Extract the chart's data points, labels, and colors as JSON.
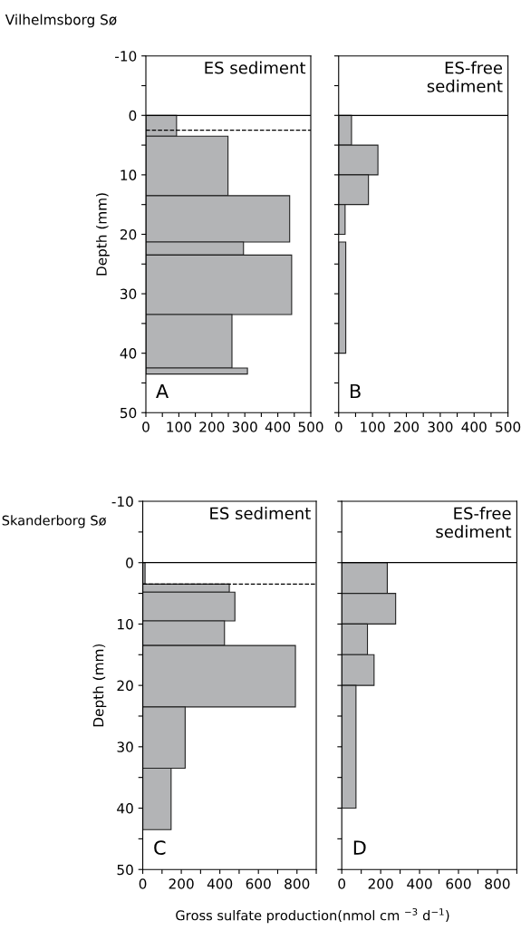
{
  "chart_data": [
    {
      "type": "histogram",
      "orientation": "horizontal",
      "title": "Vilhelmsborg Sø",
      "ylabel": "Depth (mm)",
      "annotations": [
        "ES sediment",
        "A"
      ],
      "color": "#b3b4b6",
      "bins": [
        0,
        3.5,
        13.5,
        21.3,
        23.5,
        33.5,
        42.5,
        43.5
      ],
      "values": [
        93,
        249,
        436,
        296,
        442,
        261,
        308
      ],
      "xlim": [
        0,
        500
      ],
      "xticks": [
        0,
        {
          "value": 50,
          "label": null
        },
        100,
        {
          "value": 150,
          "label": null
        },
        200,
        {
          "value": 250,
          "label": null
        },
        300,
        {
          "value": 350,
          "label": null
        },
        400,
        {
          "value": 450,
          "label": null
        },
        500
      ],
      "ylim": [
        50,
        -10
      ],
      "yticks": [
        -10,
        {
          "value": -5,
          "label": null
        },
        0,
        {
          "value": 5,
          "label": null
        },
        10,
        {
          "value": 15,
          "label": null
        },
        20,
        {
          "value": 25,
          "label": null
        },
        30,
        {
          "value": 35,
          "label": null
        },
        40,
        {
          "value": 45,
          "label": null
        },
        50
      ],
      "ref_lines": [
        {
          "axis": "y",
          "value": 0,
          "line_style": "solid",
          "color": "#000000"
        },
        {
          "axis": "y",
          "value": 2.5,
          "line_style": "dashed",
          "color": "#000000"
        }
      ],
      "grid": false
    },
    {
      "type": "histogram",
      "orientation": "horizontal",
      "annotations": [
        "ES-free\nsediment",
        "B"
      ],
      "color": "#b3b4b6",
      "bins": [
        0,
        5,
        10,
        15,
        20,
        21.3,
        40
      ],
      "values": [
        38,
        116,
        88,
        19,
        0,
        21
      ],
      "xlim": [
        0,
        500
      ],
      "xticks": [
        0,
        {
          "value": 50,
          "label": null
        },
        100,
        {
          "value": 150,
          "label": null
        },
        200,
        {
          "value": 250,
          "label": null
        },
        300,
        {
          "value": 350,
          "label": null
        },
        400,
        {
          "value": 450,
          "label": null
        },
        500
      ],
      "ylim": [
        50,
        -10
      ],
      "yticks": [
        -10,
        {
          "value": -5,
          "label": null
        },
        0,
        {
          "value": 5,
          "label": null
        },
        10,
        {
          "value": 15,
          "label": null
        },
        20,
        {
          "value": 25,
          "label": null
        },
        30,
        {
          "value": 35,
          "label": null
        },
        40,
        {
          "value": 45,
          "label": null
        },
        50
      ],
      "tick_labels": "x",
      "ref_lines": [
        {
          "axis": "y",
          "value": 0,
          "line_style": "solid",
          "color": "#000000"
        }
      ],
      "grid": false
    },
    {
      "type": "histogram",
      "orientation": "horizontal",
      "title": "Skanderborg Sø",
      "ylabel": "Depth (mm)",
      "xlabel": "Gross sulfate production(nmol cm $^{−3}$ d$^{−1}$)",
      "annotations": [
        "ES sediment",
        "C"
      ],
      "color": "#b3b4b6",
      "bins": [
        0,
        3.5,
        4.8,
        9.5,
        13.5,
        23.5,
        33.5,
        43.5
      ],
      "values": [
        12,
        449,
        478,
        424,
        792,
        220,
        147
      ],
      "xlim": [
        0,
        900
      ],
      "xticks": [
        0,
        {
          "value": 100,
          "label": null
        },
        200,
        {
          "value": 300,
          "label": null
        },
        400,
        {
          "value": 500,
          "label": null
        },
        600,
        {
          "value": 700,
          "label": null
        },
        800,
        {
          "value": 900,
          "label": null
        }
      ],
      "ylim": [
        50,
        -10
      ],
      "yticks": [
        -10,
        {
          "value": -5,
          "label": null
        },
        0,
        {
          "value": 5,
          "label": null
        },
        10,
        {
          "value": 15,
          "label": null
        },
        20,
        {
          "value": 25,
          "label": null
        },
        30,
        {
          "value": 35,
          "label": null
        },
        40,
        {
          "value": 45,
          "label": null
        },
        50
      ],
      "ref_lines": [
        {
          "axis": "y",
          "value": 0,
          "line_style": "solid",
          "color": "#000000"
        },
        {
          "axis": "y",
          "value": 3.5,
          "line_style": "dashed",
          "color": "#000000"
        }
      ],
      "grid": false
    },
    {
      "type": "histogram",
      "orientation": "horizontal",
      "annotations": [
        "ES-free\nsediment",
        "D"
      ],
      "color": "#b3b4b6",
      "bins": [
        0,
        5,
        10,
        15,
        20,
        40
      ],
      "values": [
        234,
        277,
        132,
        166,
        73
      ],
      "xlim": [
        0,
        900
      ],
      "xticks": [
        0,
        {
          "value": 100,
          "label": null
        },
        200,
        {
          "value": 300,
          "label": null
        },
        400,
        {
          "value": 500,
          "label": null
        },
        600,
        {
          "value": 700,
          "label": null
        },
        800,
        {
          "value": 900,
          "label": null
        }
      ],
      "ylim": [
        50,
        -10
      ],
      "yticks": [
        -10,
        {
          "value": -5,
          "label": null
        },
        0,
        {
          "value": 5,
          "label": null
        },
        10,
        {
          "value": 15,
          "label": null
        },
        20,
        {
          "value": 25,
          "label": null
        },
        30,
        {
          "value": 35,
          "label": null
        },
        40,
        {
          "value": 45,
          "label": null
        },
        50
      ],
      "tick_labels": "x",
      "ref_lines": [
        {
          "axis": "y",
          "value": 0,
          "line_style": "solid",
          "color": "#000000"
        }
      ],
      "grid": false
    }
  ]
}
